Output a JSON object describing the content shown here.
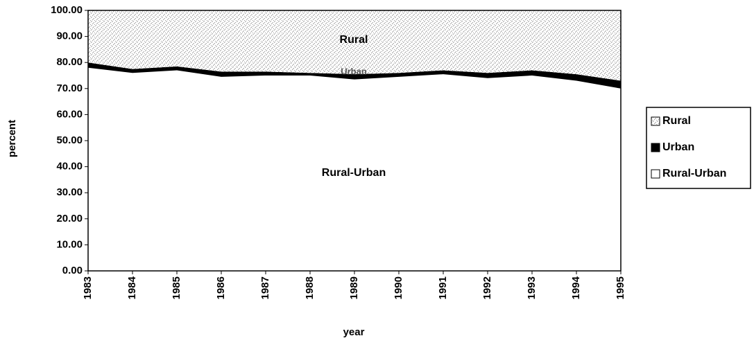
{
  "chart_data": {
    "type": "stacked_area",
    "x_label": "year",
    "y_label": "percent",
    "x": [
      1983,
      1984,
      1985,
      1986,
      1987,
      1988,
      1989,
      1990,
      1991,
      1992,
      1993,
      1994,
      1995
    ],
    "xlim": [
      1983,
      1995
    ],
    "xticks": [
      1983,
      1984,
      1985,
      1986,
      1987,
      1988,
      1989,
      1990,
      1991,
      1992,
      1993,
      1994,
      1995
    ],
    "ylim": [
      0,
      100
    ],
    "yticks": [
      {
        "value": 0,
        "label": "0.00"
      },
      {
        "value": 10,
        "label": "10.00"
      },
      {
        "value": 20,
        "label": "20.00"
      },
      {
        "value": 30,
        "label": "30.00"
      },
      {
        "value": 40,
        "label": "40.00"
      },
      {
        "value": 50,
        "label": "50.00"
      },
      {
        "value": 60,
        "label": "60.00"
      },
      {
        "value": 70,
        "label": "70.00"
      },
      {
        "value": 80,
        "label": "80.00"
      },
      {
        "value": 90,
        "label": "90.00"
      },
      {
        "value": 100,
        "label": "100.00"
      }
    ],
    "legend": "right",
    "series": [
      {
        "name": "Rural",
        "color": "#9a9a9a",
        "pattern": "stipple",
        "values": [
          20,
          22.5,
          21.5,
          23.5,
          23.5,
          24,
          24.5,
          24,
          23,
          24,
          23,
          24.5,
          27
        ]
      },
      {
        "name": "Urban",
        "color": "#000000",
        "pattern": "solid",
        "values": [
          2,
          1.5,
          1.5,
          2,
          1.5,
          1,
          2,
          1.5,
          1.5,
          2,
          2,
          2.5,
          3
        ]
      },
      {
        "name": "Rural-Urban",
        "color": "#ffffff",
        "pattern": "solid",
        "values": [
          78,
          76,
          77,
          74.5,
          75,
          75,
          73.5,
          74.5,
          75.5,
          74,
          75,
          73,
          70
        ]
      }
    ],
    "annotations": [
      "Rural",
      "Urban",
      "Rural-Urban"
    ]
  }
}
